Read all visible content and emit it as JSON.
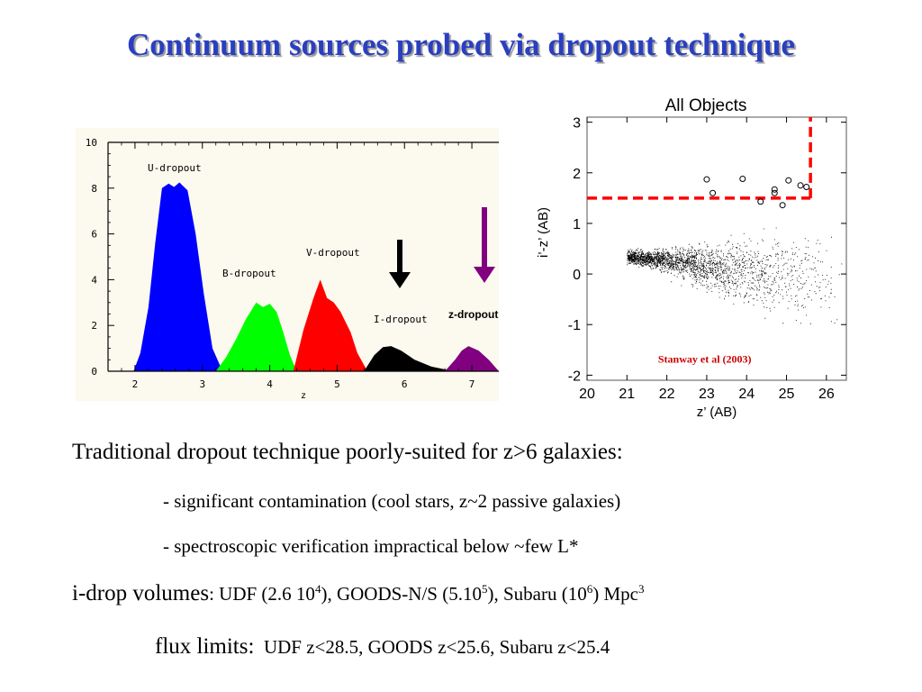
{
  "slide": {
    "title": "Continuum sources probed via dropout technique",
    "body": {
      "line1": "Traditional dropout technique poorly-suited for z>6 galaxies:",
      "bullet1": "- significant contamination (cool stars, z~2 passive galaxies)",
      "bullet2": "- spectroscopic verification impractical below ~few L*",
      "volumes": {
        "lead": "i-drop volumes",
        "colon": ":",
        "udf": " UDF (2.6 10",
        "udf_exp": "4",
        "goods": "), GOODS-N/S (5.10",
        "goods_exp": "5",
        "subaru": "), Subaru (10",
        "subaru_exp": "6",
        "unit": ") Mpc",
        "unit_exp": "3"
      },
      "flux_lead": "flux limits:",
      "flux_values": "UDF z<28.5, GOODS z<25.6, Subaru z<25.4"
    }
  },
  "chart_data": [
    {
      "type": "area",
      "title": "",
      "xlabel": "z",
      "ylabel": "",
      "xlim": [
        1.6,
        7.4
      ],
      "ylim": [
        0,
        10
      ],
      "xticks": [
        "2",
        "3",
        "4",
        "5",
        "6",
        "7"
      ],
      "yticks": [
        "0",
        "2",
        "4",
        "6",
        "8",
        "10"
      ],
      "grid": false,
      "series": [
        {
          "name": "U-dropout",
          "color": "#0000ff",
          "x": [
            1.98,
            2.08,
            2.2,
            2.3,
            2.4,
            2.5,
            2.58,
            2.66,
            2.78,
            2.9,
            3.02,
            3.15,
            3.3
          ],
          "y": [
            0,
            0.8,
            2.8,
            5.6,
            8.0,
            8.2,
            8.05,
            8.25,
            7.9,
            6.0,
            3.4,
            1.0,
            0
          ]
        },
        {
          "name": "B-dropout",
          "color": "#00ff00",
          "x": [
            3.2,
            3.35,
            3.5,
            3.65,
            3.8,
            3.9,
            4.0,
            4.1,
            4.2,
            4.3,
            4.4
          ],
          "y": [
            0,
            0.6,
            1.4,
            2.3,
            3.0,
            2.8,
            2.95,
            2.6,
            1.7,
            0.7,
            0
          ]
        },
        {
          "name": "V-dropout",
          "color": "#ff0000",
          "x": [
            4.35,
            4.5,
            4.65,
            4.75,
            4.85,
            4.95,
            5.05,
            5.2,
            5.3,
            5.45
          ],
          "y": [
            0,
            1.8,
            3.2,
            4.0,
            3.2,
            3.0,
            2.6,
            1.7,
            0.8,
            0
          ]
        },
        {
          "name": "I-dropout",
          "color": "#000000",
          "x": [
            5.4,
            5.55,
            5.68,
            5.8,
            5.95,
            6.15,
            6.4,
            6.65,
            6.8
          ],
          "y": [
            0,
            0.7,
            1.05,
            1.1,
            0.9,
            0.5,
            0.2,
            0.05,
            0
          ]
        },
        {
          "name": "z-dropout",
          "color": "#800080",
          "x": [
            6.6,
            6.75,
            6.85,
            6.95,
            7.1,
            7.25,
            7.4
          ],
          "y": [
            0,
            0.5,
            0.9,
            1.1,
            0.9,
            0.5,
            0
          ]
        }
      ],
      "annotations": [
        {
          "text": "U-dropout"
        },
        {
          "text": "B-dropout"
        },
        {
          "text": "V-dropout"
        },
        {
          "text": "I-dropout"
        },
        {
          "text": "z-dropout"
        }
      ],
      "arrows": [
        {
          "color": "#000000",
          "points_to": "I-dropout"
        },
        {
          "color": "#800080",
          "points_to": "z-dropout"
        }
      ]
    },
    {
      "type": "scatter",
      "title": "All Objects",
      "xlabel": "z’ (AB)",
      "ylabel": "i’-z’ (AB)",
      "xlim": [
        20,
        26.5
      ],
      "ylim": [
        -2.1,
        3.1
      ],
      "xticks": [
        "20",
        "21",
        "22",
        "23",
        "24",
        "25",
        "26"
      ],
      "yticks": [
        "-2",
        "-1",
        "0",
        "1",
        "2",
        "3"
      ],
      "grid": false,
      "legend": "none",
      "credit": "Stanway et al (2003)",
      "selection": {
        "color_cut": 1.5,
        "mag_limit": 25.6,
        "color": "#ff0000"
      },
      "dropout_candidates": {
        "marker": "open-circle",
        "x": [
          23.0,
          23.15,
          23.9,
          24.35,
          24.7,
          24.7,
          24.9,
          25.05,
          25.35,
          25.5
        ],
        "y": [
          1.87,
          1.6,
          1.88,
          1.43,
          1.6,
          1.67,
          1.36,
          1.85,
          1.75,
          1.72
        ]
      },
      "field_population": "thousands of small black dots, mean colour near 0, scatter widening toward fainter z’"
    }
  ]
}
